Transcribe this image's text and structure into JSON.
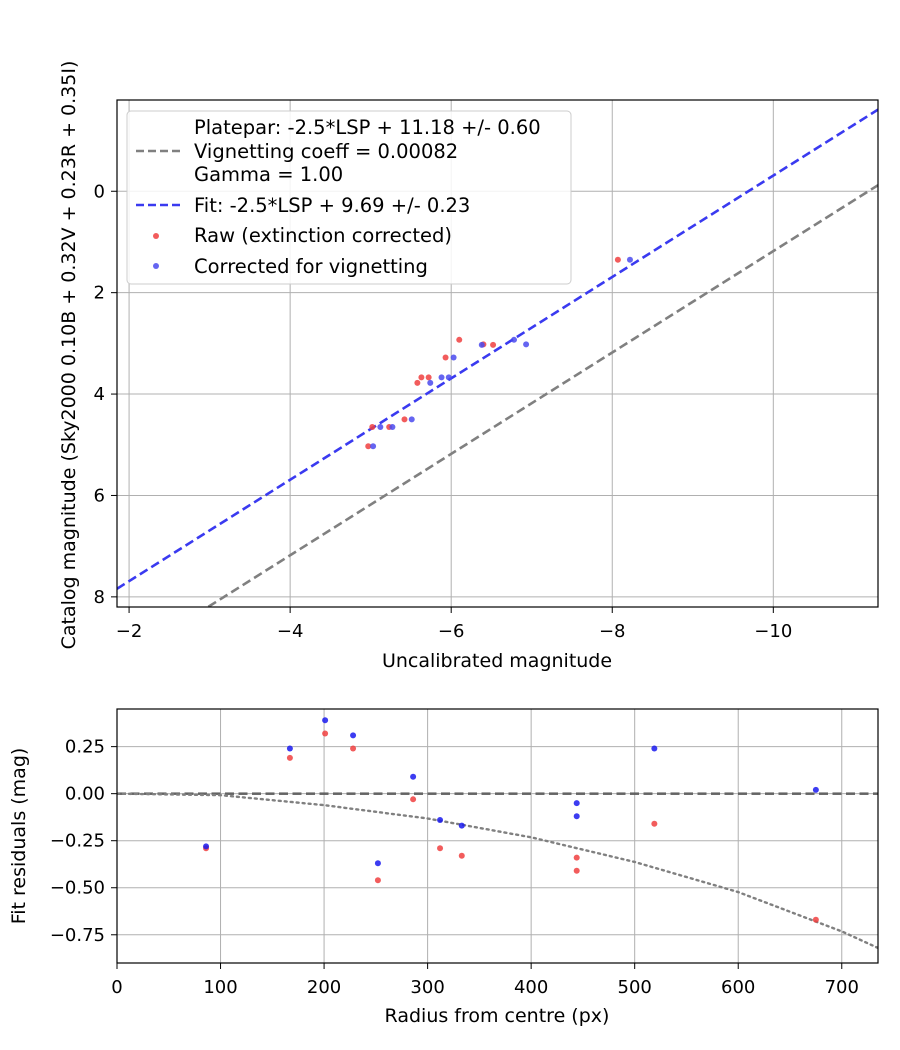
{
  "chart_data": [
    {
      "type": "scatter",
      "title": "",
      "xlabel": "Uncalibrated magnitude",
      "ylabel": "Catalog magnitude (Sky2000 0.10B + 0.32V + 0.23R + 0.35I)",
      "xlim": [
        -1.85,
        -11.3
      ],
      "ylim": [
        8.2,
        -1.8
      ],
      "x_inverted": true,
      "y_inverted": true,
      "grid": true,
      "legend_position": "upper-left",
      "xticks": [
        -2,
        -4,
        -6,
        -8,
        -10
      ],
      "xtick_labels": [
        "−2",
        "−4",
        "−6",
        "−8",
        "−10"
      ],
      "yticks": [
        0,
        2,
        4,
        6,
        8
      ],
      "ytick_labels": [
        "0",
        "2",
        "4",
        "6",
        "8"
      ],
      "lines": [
        {
          "name": "Platepar: -2.5*LSP + 11.18 +/- 0.60\nVignetting coeff = 0.00082\nGamma = 1.00",
          "label_lines": [
            "Platepar: -2.5*LSP + 11.18 +/- 0.60",
            "Vignetting coeff = 0.00082",
            "Gamma = 1.00"
          ],
          "style": "dashed",
          "color": "#808080",
          "slope": 1,
          "intercept": 11.18
        },
        {
          "name": "Fit: -2.5*LSP + 9.69 +/- 0.23",
          "label_lines": [
            "Fit: -2.5*LSP + 9.69 +/- 0.23"
          ],
          "style": "dashed",
          "color": "#3a3af0",
          "slope": 1,
          "intercept": 9.69
        }
      ],
      "series": [
        {
          "name": "Raw (extinction corrected)",
          "color": "#f04040",
          "points": [
            [
              -8.07,
              1.35
            ],
            [
              -6.52,
              3.03
            ],
            [
              -6.4,
              3.02
            ],
            [
              -6.1,
              2.93
            ],
            [
              -5.93,
              3.28
            ],
            [
              -5.72,
              3.67
            ],
            [
              -5.63,
              3.67
            ],
            [
              -5.58,
              3.78
            ],
            [
              -5.42,
              4.5
            ],
            [
              -5.23,
              4.65
            ],
            [
              -5.02,
              4.65
            ],
            [
              -4.97,
              5.03
            ]
          ]
        },
        {
          "name": "Corrected for vignetting",
          "color": "#4a4aee",
          "points": [
            [
              -8.22,
              1.35
            ],
            [
              -6.93,
              3.02
            ],
            [
              -6.78,
              2.93
            ],
            [
              -6.38,
              3.03
            ],
            [
              -6.03,
              3.28
            ],
            [
              -5.97,
              3.67
            ],
            [
              -5.88,
              3.67
            ],
            [
              -5.74,
              3.78
            ],
            [
              -5.51,
              4.5
            ],
            [
              -5.27,
              4.65
            ],
            [
              -5.12,
              4.65
            ],
            [
              -5.03,
              5.03
            ]
          ]
        }
      ]
    },
    {
      "type": "scatter",
      "title": "",
      "xlabel": "Radius from centre (px)",
      "ylabel": "Fit residuals (mag)",
      "xlim": [
        0,
        735
      ],
      "ylim": [
        -0.9,
        0.45
      ],
      "grid": true,
      "xticks": [
        0,
        100,
        200,
        300,
        400,
        500,
        600,
        700
      ],
      "xtick_labels": [
        "0",
        "100",
        "200",
        "300",
        "400",
        "500",
        "600",
        "700"
      ],
      "yticks": [
        0.25,
        0.0,
        -0.25,
        -0.5,
        -0.75
      ],
      "ytick_labels": [
        "0.25",
        "0.00",
        "−0.25",
        "−0.50",
        "−0.75"
      ],
      "reference_line": {
        "y": 0,
        "style": "dashed",
        "color": "#555555"
      },
      "vignetting_curve": {
        "style": "dotted",
        "color": "#808080",
        "coeff": 0.00082,
        "points": [
          [
            0,
            0
          ],
          [
            100,
            -0.008
          ],
          [
            200,
            -0.061
          ],
          [
            300,
            -0.132
          ],
          [
            400,
            -0.232
          ],
          [
            500,
            -0.363
          ],
          [
            600,
            -0.523
          ],
          [
            700,
            -0.732
          ],
          [
            735,
            -0.82
          ]
        ]
      },
      "series": [
        {
          "name": "Raw (extinction corrected)",
          "color": "#f04040",
          "points": [
            [
              86,
              -0.29
            ],
            [
              167,
              0.19
            ],
            [
              201,
              0.32
            ],
            [
              228,
              0.24
            ],
            [
              252,
              -0.46
            ],
            [
              286,
              -0.03
            ],
            [
              312,
              -0.29
            ],
            [
              333,
              -0.33
            ],
            [
              444,
              -0.34
            ],
            [
              444,
              -0.41
            ],
            [
              519,
              -0.16
            ],
            [
              675,
              -0.67
            ]
          ]
        },
        {
          "name": "Corrected for vignetting",
          "color": "#1a1aee",
          "points": [
            [
              86,
              -0.28
            ],
            [
              167,
              0.24
            ],
            [
              201,
              0.39
            ],
            [
              228,
              0.31
            ],
            [
              252,
              -0.37
            ],
            [
              286,
              0.09
            ],
            [
              312,
              -0.14
            ],
            [
              333,
              -0.17
            ],
            [
              444,
              -0.05
            ],
            [
              444,
              -0.12
            ],
            [
              519,
              0.24
            ],
            [
              675,
              0.02
            ]
          ]
        }
      ]
    }
  ]
}
